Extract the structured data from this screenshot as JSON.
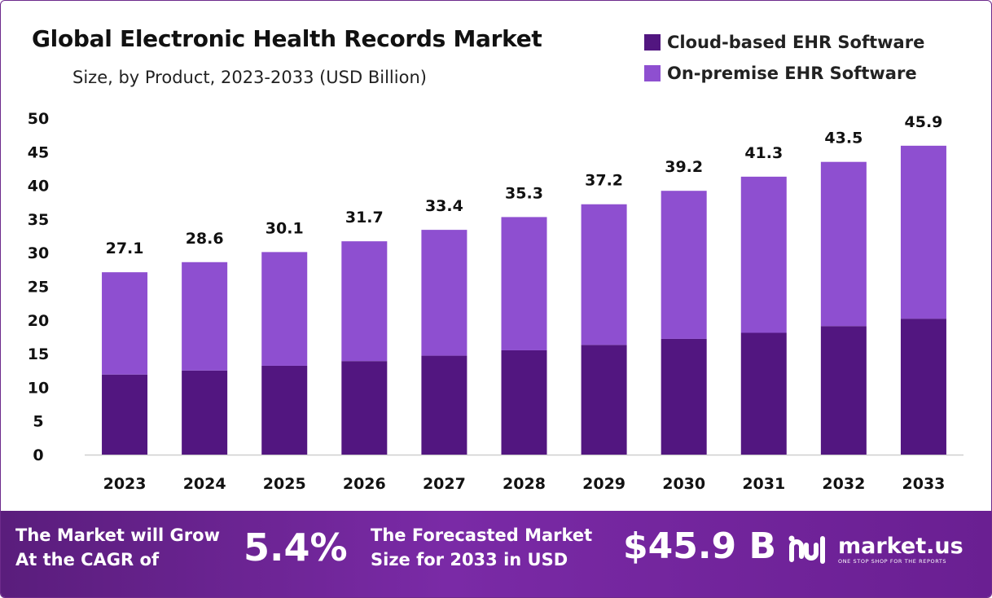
{
  "header": {
    "title": "Global Electronic Health Records Market",
    "subtitle": "Size, by Product, 2023-2033 (USD Billion)"
  },
  "colors": {
    "cloud": "#521680",
    "onpremise": "#8e4fd0",
    "banner": "#6a1f92"
  },
  "chart_data": {
    "type": "bar",
    "stacked": true,
    "title": "Global Electronic Health Records Market",
    "subtitle": "Size, by Product, 2023-2033 (USD Billion)",
    "xlabel": "",
    "ylabel": "",
    "ylim": [
      0,
      50
    ],
    "yticks": [
      0,
      5,
      10,
      15,
      20,
      25,
      30,
      35,
      40,
      45,
      50
    ],
    "grid": false,
    "legend_position": "top-right",
    "categories": [
      "2023",
      "2024",
      "2025",
      "2026",
      "2027",
      "2028",
      "2029",
      "2030",
      "2031",
      "2032",
      "2033"
    ],
    "series": [
      {
        "name": "Cloud-based EHR Software",
        "color": "#521680",
        "values": [
          11.9,
          12.5,
          13.2,
          13.9,
          14.7,
          15.5,
          16.3,
          17.2,
          18.1,
          19.1,
          20.2
        ]
      },
      {
        "name": "On-premise EHR Software",
        "color": "#8e4fd0",
        "values": [
          15.2,
          16.1,
          16.9,
          17.8,
          18.7,
          19.8,
          20.9,
          22.0,
          23.2,
          24.4,
          25.7
        ]
      }
    ],
    "totals": [
      27.1,
      28.6,
      30.1,
      31.7,
      33.4,
      35.3,
      37.2,
      39.2,
      41.3,
      43.5,
      45.9
    ],
    "total_labels": [
      "27.1",
      "28.6",
      "30.1",
      "31.7",
      "33.4",
      "35.3",
      "37.2",
      "39.2",
      "41.3",
      "43.5",
      "45.9"
    ]
  },
  "banner": {
    "cagr_line1": "The Market will Grow",
    "cagr_line2": "At the CAGR of",
    "cagr_value": "5.4%",
    "forecast_line1": "The Forecasted Market",
    "forecast_line2": "Size for 2033 in USD",
    "forecast_value": "$45.9 B",
    "brand_name": "market.us",
    "brand_tagline": "ONE STOP SHOP FOR THE REPORTS",
    "brand_icon": "market-us-logo-icon"
  }
}
